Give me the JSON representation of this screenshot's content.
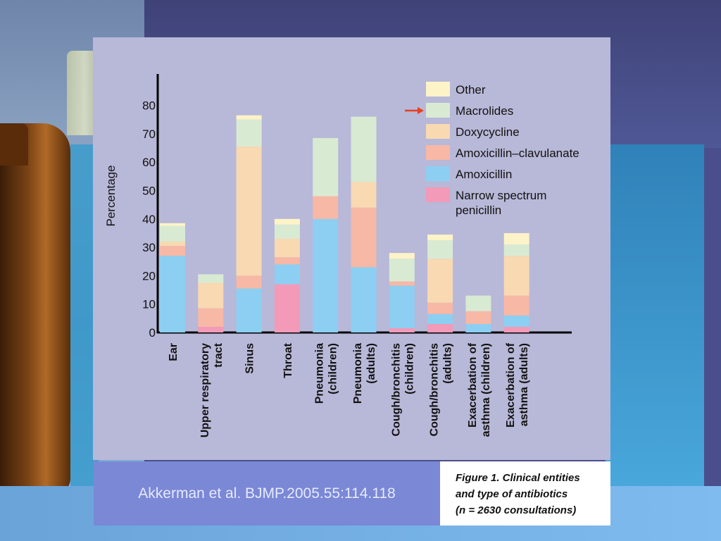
{
  "slide": {
    "credit": "Akkerman et al. BJMP.2005.55:114.118",
    "caption": [
      "Figure 1. Clinical entities",
      "and type of antibiotics",
      "(n = 2630 consultations)"
    ]
  },
  "colors": {
    "Other": "#fdf3c8",
    "Macrolides": "#d9ead3",
    "Doxycycline": "#f8d9b2",
    "Amoxicillin–clavulanate": "#f7b8a5",
    "Amoxicillin": "#8ccff2",
    "Narrow spectrum penicillin": "#f29ab8",
    "arrow": "#e8401c",
    "axis": "#000000"
  },
  "chart_data": {
    "type": "bar",
    "stacked": true,
    "ylabel": "Percentage",
    "xlabel": "",
    "ylim": [
      0,
      90
    ],
    "yticks": [
      0,
      10,
      20,
      30,
      40,
      50,
      60,
      70,
      80
    ],
    "legend_position": "top-right",
    "highlighted_series": "Macrolides",
    "categories": [
      [
        "Ear"
      ],
      [
        "Upper respiratory",
        "tract"
      ],
      [
        "Sinus"
      ],
      [
        "Throat"
      ],
      [
        "Pneumonia",
        "(children)"
      ],
      [
        "Pneumonia",
        "(adults)"
      ],
      [
        "Cough/bronchitis",
        "(children)"
      ],
      [
        "Cough/bronchitis",
        "(adults)"
      ],
      [
        "Exacerbation of",
        "asthma (children)"
      ],
      [
        "Exacerbation of",
        "asthma (adults)"
      ]
    ],
    "series": [
      {
        "name": "Narrow spectrum penicillin",
        "legend_lines": [
          "Narrow spectrum",
          "penicillin"
        ],
        "values": [
          0,
          2,
          0,
          17,
          0,
          0,
          1.5,
          3,
          0,
          2
        ]
      },
      {
        "name": "Amoxicillin",
        "legend_lines": [
          "Amoxicillin"
        ],
        "values": [
          27,
          0,
          15.5,
          7,
          40,
          23,
          15,
          3.5,
          3,
          4
        ]
      },
      {
        "name": "Amoxicillin–clavulanate",
        "legend_lines": [
          "Amoxicillin–clavulanate"
        ],
        "values": [
          3.5,
          6.5,
          4.5,
          2.5,
          8,
          21,
          1.5,
          4,
          4.5,
          7
        ]
      },
      {
        "name": "Doxycycline",
        "legend_lines": [
          "Doxycycline"
        ],
        "values": [
          1.5,
          9,
          45.5,
          6.5,
          0,
          9,
          0,
          15.5,
          0,
          14
        ]
      },
      {
        "name": "Macrolides",
        "legend_lines": [
          "Macrolides"
        ],
        "values": [
          5.5,
          3,
          9.5,
          5,
          20.5,
          23,
          8,
          6.5,
          5.5,
          4
        ]
      },
      {
        "name": "Other",
        "legend_lines": [
          "Other"
        ],
        "values": [
          1,
          0,
          1.5,
          2,
          0,
          0,
          2,
          2,
          0,
          4
        ]
      }
    ]
  }
}
